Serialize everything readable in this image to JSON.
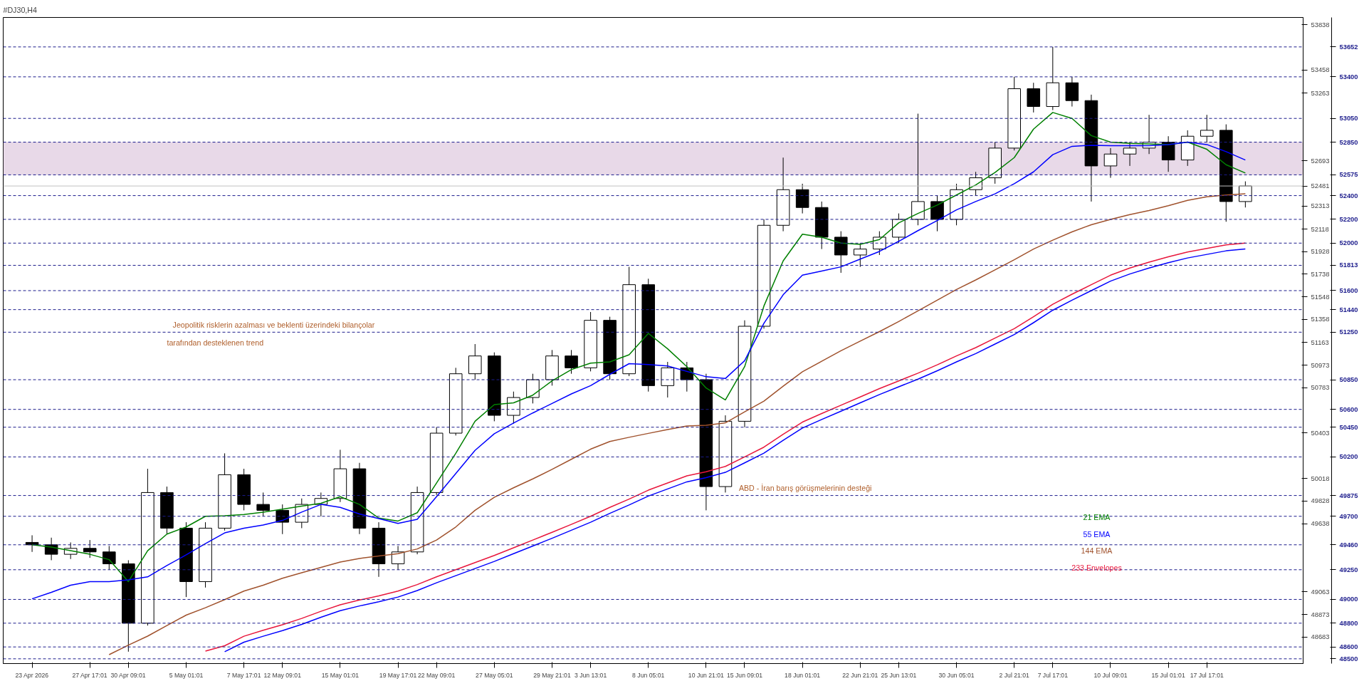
{
  "chart_data": {
    "type": "candlestick",
    "title": "#DJ30,H4",
    "categories": [
      "23 Apr 2026",
      null,
      null,
      "27 Apr 17:01",
      null,
      "30 Apr 09:01",
      null,
      null,
      "5 May 01:01",
      null,
      null,
      "7 May 17:01",
      null,
      "12 May 09:01",
      null,
      null,
      "15 May 01:01",
      null,
      null,
      "19 May 17:01",
      null,
      "22 May 09:01",
      null,
      null,
      "27 May 05:01",
      null,
      null,
      "29 May 21:01",
      null,
      "3 Jun 13:01",
      null,
      null,
      "8 Jun 05:01",
      null,
      null,
      "10 Jun 21:01",
      null,
      "15 Jun 09:01",
      null,
      null,
      "18 Jun 01:01",
      null,
      null,
      "22 Jun 21:01",
      null,
      "25 Jun 13:01",
      null,
      null,
      "30 Jun 05:01",
      null,
      null,
      "2 Jul 21:01",
      null,
      "7 Jul 17:01",
      null,
      null,
      "10 Jul 09:01",
      null,
      null,
      "15 Jul 01:01",
      null,
      "17 Jul 17:01",
      null,
      null
    ],
    "ohlc": [
      [
        49480,
        49540,
        49400,
        49460
      ],
      [
        49460,
        49520,
        49330,
        49380
      ],
      [
        49380,
        49480,
        49340,
        49430
      ],
      [
        49430,
        49500,
        49350,
        49400
      ],
      [
        49400,
        49450,
        49250,
        49300
      ],
      [
        49300,
        49330,
        48560,
        48800
      ],
      [
        48800,
        50100,
        48780,
        49900
      ],
      [
        49900,
        49950,
        49550,
        49600
      ],
      [
        49600,
        49650,
        49020,
        49150
      ],
      [
        49150,
        49650,
        49100,
        49600
      ],
      [
        49600,
        50230,
        49580,
        50050
      ],
      [
        50050,
        50100,
        49750,
        49800
      ],
      [
        49800,
        49900,
        49700,
        49750
      ],
      [
        49750,
        49800,
        49550,
        49650
      ],
      [
        49650,
        49850,
        49600,
        49800
      ],
      [
        49800,
        49900,
        49700,
        49850
      ],
      [
        49850,
        50260,
        49820,
        50100
      ],
      [
        50100,
        50150,
        49550,
        49600
      ],
      [
        49600,
        49650,
        49190,
        49300
      ],
      [
        49300,
        49450,
        49250,
        49400
      ],
      [
        49400,
        49950,
        49380,
        49900
      ],
      [
        49900,
        50450,
        49880,
        50400
      ],
      [
        50400,
        50950,
        50380,
        50900
      ],
      [
        50900,
        51150,
        50850,
        51050
      ],
      [
        51050,
        51080,
        50500,
        50550
      ],
      [
        50550,
        50750,
        50480,
        50700
      ],
      [
        50700,
        50900,
        50650,
        50850
      ],
      [
        50850,
        51100,
        50800,
        51050
      ],
      [
        51050,
        51100,
        50900,
        50950
      ],
      [
        50950,
        51420,
        50920,
        51350
      ],
      [
        51350,
        51380,
        50850,
        50900
      ],
      [
        50900,
        51800,
        50880,
        51650
      ],
      [
        51650,
        51700,
        50750,
        50800
      ],
      [
        50800,
        51000,
        50700,
        50950
      ],
      [
        50950,
        51000,
        50750,
        50850
      ],
      [
        50850,
        50900,
        49750,
        49950
      ],
      [
        49950,
        50550,
        49900,
        50500
      ],
      [
        50500,
        51350,
        50450,
        51300
      ],
      [
        51300,
        52200,
        51280,
        52150
      ],
      [
        52150,
        52720,
        52100,
        52450
      ],
      [
        52450,
        52500,
        52250,
        52300
      ],
      [
        52300,
        52350,
        51950,
        52050
      ],
      [
        52050,
        52100,
        51750,
        51900
      ],
      [
        51900,
        52000,
        51800,
        51950
      ],
      [
        51950,
        52100,
        51900,
        52050
      ],
      [
        52050,
        52250,
        52000,
        52200
      ],
      [
        52200,
        53090,
        52150,
        52350
      ],
      [
        52350,
        52400,
        52100,
        52200
      ],
      [
        52200,
        52500,
        52150,
        52450
      ],
      [
        52450,
        52600,
        52400,
        52550
      ],
      [
        52550,
        52850,
        52500,
        52800
      ],
      [
        52800,
        53400,
        52780,
        53300
      ],
      [
        53300,
        53350,
        53100,
        53150
      ],
      [
        53150,
        53652,
        53120,
        53350
      ],
      [
        53350,
        53400,
        53150,
        53200
      ],
      [
        53200,
        53250,
        52350,
        52650
      ],
      [
        52650,
        52800,
        52550,
        52750
      ],
      [
        52750,
        52850,
        52650,
        52800
      ],
      [
        52800,
        53080,
        52750,
        52850
      ],
      [
        52850,
        52900,
        52600,
        52700
      ],
      [
        52700,
        52950,
        52650,
        52900
      ],
      [
        52900,
        53080,
        52850,
        52950
      ],
      [
        52950,
        53000,
        52180,
        52350
      ],
      [
        52350,
        52520,
        52300,
        52481
      ]
    ],
    "series": [
      {
        "type": "line",
        "name": "21 EMA",
        "color": "#008000",
        "values": [
          49460,
          49440,
          49410,
          49380,
          49335,
          49150,
          49410,
          49550,
          49610,
          49700,
          49705,
          49715,
          49735,
          49760,
          49785,
          49810,
          49865,
          49800,
          49685,
          49660,
          49730,
          49980,
          50230,
          50500,
          50640,
          50655,
          50720,
          50840,
          50935,
          50990,
          51000,
          51060,
          51240,
          51110,
          50960,
          50780,
          50680,
          50960,
          51470,
          51850,
          52075,
          52050,
          52000,
          51990,
          52030,
          52170,
          52250,
          52320,
          52405,
          52490,
          52595,
          52720,
          52960,
          53100,
          53050,
          52905,
          52850,
          52840,
          52835,
          52830,
          52850,
          52790,
          52660,
          52590
        ]
      },
      {
        "type": "line",
        "name": "55 EMA",
        "color": "#0000ff",
        "values": [
          49005,
          49060,
          49120,
          49150,
          49150,
          49165,
          49190,
          49285,
          49375,
          49470,
          49560,
          49600,
          49627,
          49665,
          49735,
          49800,
          49775,
          49720,
          49680,
          49640,
          49675,
          49865,
          50060,
          50255,
          50395,
          50485,
          50570,
          50650,
          50730,
          50800,
          50895,
          50985,
          50977,
          50965,
          50920,
          50875,
          50860,
          51010,
          51325,
          51565,
          51730,
          51765,
          51800,
          51865,
          51930,
          52015,
          52105,
          52190,
          52280,
          52350,
          52415,
          52500,
          52600,
          52745,
          52815,
          52824,
          52821,
          52820,
          52820,
          52830,
          52850,
          52830,
          52770,
          52700
        ]
      },
      {
        "type": "line",
        "name": "144 EMA",
        "color": "#a0522d",
        "values": [
          null,
          null,
          null,
          null,
          48535,
          48615,
          48691,
          48780,
          48868,
          48930,
          48998,
          49070,
          49120,
          49178,
          49225,
          49270,
          49315,
          49345,
          49365,
          49385,
          49425,
          49500,
          49610,
          49750,
          49860,
          49940,
          50015,
          50095,
          50180,
          50265,
          50330,
          50365,
          50398,
          50430,
          50460,
          50466,
          50487,
          50580,
          50670,
          50795,
          50917,
          51005,
          51094,
          51175,
          51255,
          51340,
          51430,
          51520,
          51610,
          51690,
          51775,
          51860,
          51950,
          52025,
          52095,
          52155,
          52200,
          52240,
          52275,
          52315,
          52360,
          52390,
          52405,
          52415
        ]
      },
      {
        "type": "line",
        "name": "233 Envelopes",
        "color": "#e8173c",
        "values": [
          null,
          null,
          null,
          null,
          null,
          null,
          null,
          null,
          null,
          48565,
          48610,
          48690,
          48740,
          48787,
          48840,
          48900,
          48955,
          48995,
          49030,
          49070,
          49125,
          49190,
          49250,
          49310,
          49370,
          49435,
          49500,
          49565,
          49632,
          49700,
          49775,
          49845,
          49920,
          49980,
          50040,
          50075,
          50120,
          50200,
          50282,
          50390,
          50493,
          50565,
          50635,
          50705,
          50775,
          50840,
          50905,
          50975,
          51050,
          51120,
          51200,
          51280,
          51380,
          51485,
          51570,
          51650,
          51730,
          51790,
          51840,
          51885,
          51925,
          51955,
          51985,
          52000
        ]
      },
      {
        "type": "line",
        "color": "#0000ff",
        "values": [
          null,
          null,
          null,
          null,
          null,
          null,
          null,
          null,
          null,
          null,
          48560,
          48640,
          48690,
          48737,
          48790,
          48850,
          48905,
          48945,
          48980,
          49020,
          49075,
          49140,
          49200,
          49260,
          49320,
          49385,
          49450,
          49515,
          49582,
          49650,
          49725,
          49795,
          49870,
          49930,
          49990,
          50025,
          50070,
          50150,
          50232,
          50340,
          50443,
          50515,
          50585,
          50655,
          50725,
          50790,
          50855,
          50925,
          51000,
          51070,
          51150,
          51230,
          51330,
          51435,
          51520,
          51600,
          51680,
          51740,
          51790,
          51835,
          51875,
          51905,
          51935,
          51950
        ]
      }
    ],
    "bands": [
      {
        "axis": "y",
        "from": 52575,
        "to": 52850,
        "color": "#d8bfd8"
      }
    ],
    "ylim": [
      48460,
      53900
    ],
    "yticks": [
      53838,
      53458,
      53263,
      52693,
      52313,
      52118,
      51928,
      51738,
      51548,
      51358,
      51163,
      50973,
      50783,
      50403,
      50018,
      49828,
      49638,
      49063,
      48873,
      48683
    ],
    "ref_lines": [
      {
        "axis": "y",
        "value": 53652,
        "label": "53652",
        "color": "#1c1c8c",
        "line_style": "dashed"
      },
      {
        "axis": "y",
        "value": 53400,
        "label": "53400",
        "color": "#1c1c8c",
        "line_style": "dashed"
      },
      {
        "axis": "y",
        "value": 53050,
        "label": "53050",
        "color": "#1c1c8c",
        "line_style": "dashed"
      },
      {
        "axis": "y",
        "value": 52850,
        "label": "52850",
        "color": "#1c1c8c",
        "line_style": "dashed"
      },
      {
        "axis": "y",
        "value": 52575,
        "label": "52575",
        "color": "#1c1c8c",
        "line_style": "dashed"
      },
      {
        "axis": "y",
        "value": 52481,
        "label": "52481",
        "color": "#c0c0c0",
        "line_style": "solid"
      },
      {
        "axis": "y",
        "value": 52400,
        "label": "52400",
        "color": "#1c1c8c",
        "line_style": "dashed"
      },
      {
        "axis": "y",
        "value": 52200,
        "label": "52200",
        "color": "#1c1c8c",
        "line_style": "dashed"
      },
      {
        "axis": "y",
        "value": 52000,
        "label": "52000",
        "color": "#1c1c8c",
        "line_style": "dashed"
      },
      {
        "axis": "y",
        "value": 51813,
        "label": "51813",
        "color": "#1c1c8c",
        "line_style": "dashed"
      },
      {
        "axis": "y",
        "value": 51600,
        "label": "51600",
        "color": "#1c1c8c",
        "line_style": "dashed"
      },
      {
        "axis": "y",
        "value": 51440,
        "label": "51440",
        "color": "#1c1c8c",
        "line_style": "dashed"
      },
      {
        "axis": "y",
        "value": 51250,
        "label": "51250",
        "color": "#1c1c8c",
        "line_style": "dashed"
      },
      {
        "axis": "y",
        "value": 50850,
        "label": "50850",
        "color": "#1c1c8c",
        "line_style": "dashed"
      },
      {
        "axis": "y",
        "value": 50600,
        "label": "50600",
        "color": "#1c1c8c",
        "line_style": "dashed"
      },
      {
        "axis": "y",
        "value": 50450,
        "label": "50450",
        "color": "#1c1c8c",
        "line_style": "dashed"
      },
      {
        "axis": "y",
        "value": 50200,
        "label": "50200",
        "color": "#1c1c8c",
        "line_style": "dashed"
      },
      {
        "axis": "y",
        "value": 49875,
        "label": "49875",
        "color": "#1c1c8c",
        "line_style": "dashed"
      },
      {
        "axis": "y",
        "value": 49700,
        "label": "49700",
        "color": "#1c1c8c",
        "line_style": "dashed"
      },
      {
        "axis": "y",
        "value": 49460,
        "label": "49460",
        "color": "#1c1c8c",
        "line_style": "dashed"
      },
      {
        "axis": "y",
        "value": 49250,
        "label": "49250",
        "color": "#1c1c8c",
        "line_style": "dashed"
      },
      {
        "axis": "y",
        "value": 49000,
        "label": "49000",
        "color": "#1c1c8c",
        "line_style": "dashed"
      },
      {
        "axis": "y",
        "value": 48800,
        "label": "48800",
        "color": "#1c1c8c",
        "line_style": "dashed"
      },
      {
        "axis": "y",
        "value": 48600,
        "label": "48600",
        "color": "#1c1c8c",
        "line_style": "dashed"
      },
      {
        "axis": "y",
        "value": 48500,
        "label": "48500",
        "color": "#1c1c8c",
        "line_style": "dashed"
      }
    ],
    "annotations": [
      "Jeopolitik risklerin azalması ve beklenti üzerindeki bilançolar",
      "tarafından desteklenen trend",
      "ABD - İran barış görüşmelerinin desteği"
    ],
    "legend": "bottom right",
    "grid": false
  }
}
